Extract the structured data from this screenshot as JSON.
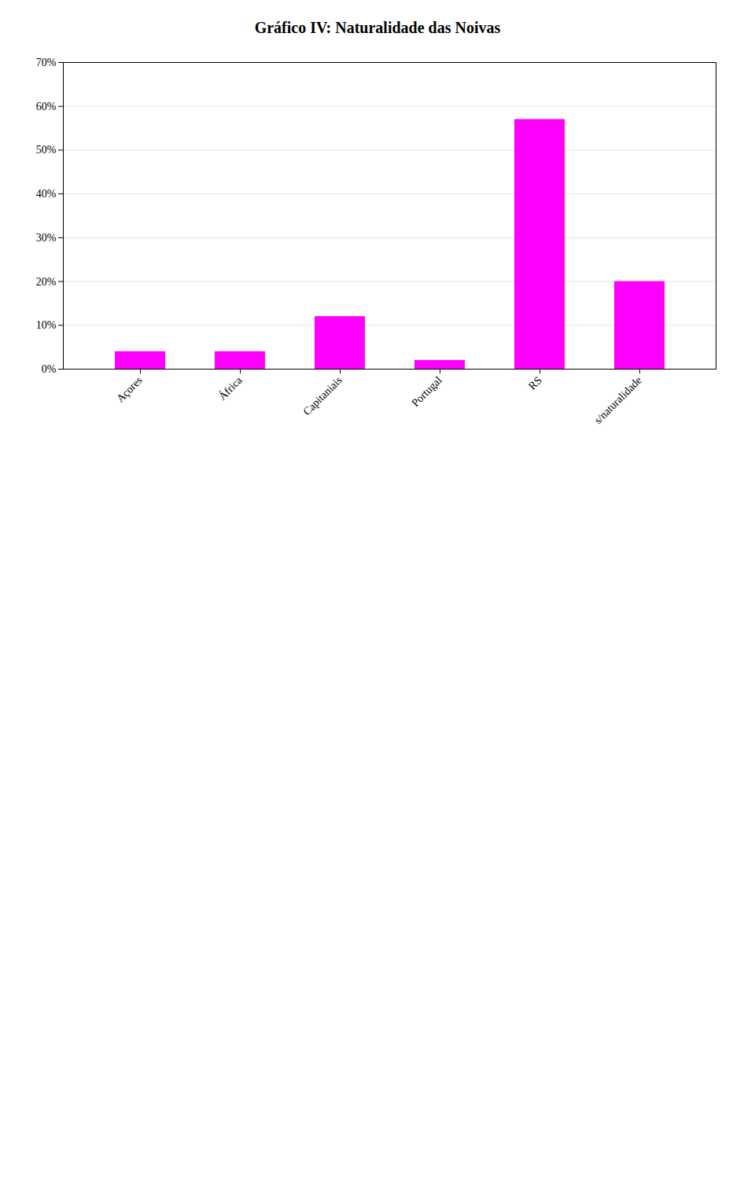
{
  "chart_data": {
    "type": "bar",
    "title": "Gráfico IV: Naturalidade das Noivas",
    "categories": [
      "Açores",
      "África",
      "Capitaniais",
      "Portugal",
      "RS",
      "s/naturalidade"
    ],
    "values": [
      0.04,
      0.04,
      0.12,
      0.02,
      0.57,
      0.2
    ],
    "color": "#FF00FF",
    "ylim": [
      0,
      0.7
    ],
    "yticks": [
      {
        "value": 0.0,
        "label": "0%"
      },
      {
        "value": 0.1,
        "label": "10%"
      },
      {
        "value": 0.2,
        "label": "20%"
      },
      {
        "value": 0.3,
        "label": "30%"
      },
      {
        "value": 0.4,
        "label": "40%"
      },
      {
        "value": 0.5,
        "label": "50%"
      },
      {
        "value": 0.6,
        "label": "60%"
      },
      {
        "value": 0.7,
        "label": "70%"
      }
    ],
    "grid": true
  }
}
